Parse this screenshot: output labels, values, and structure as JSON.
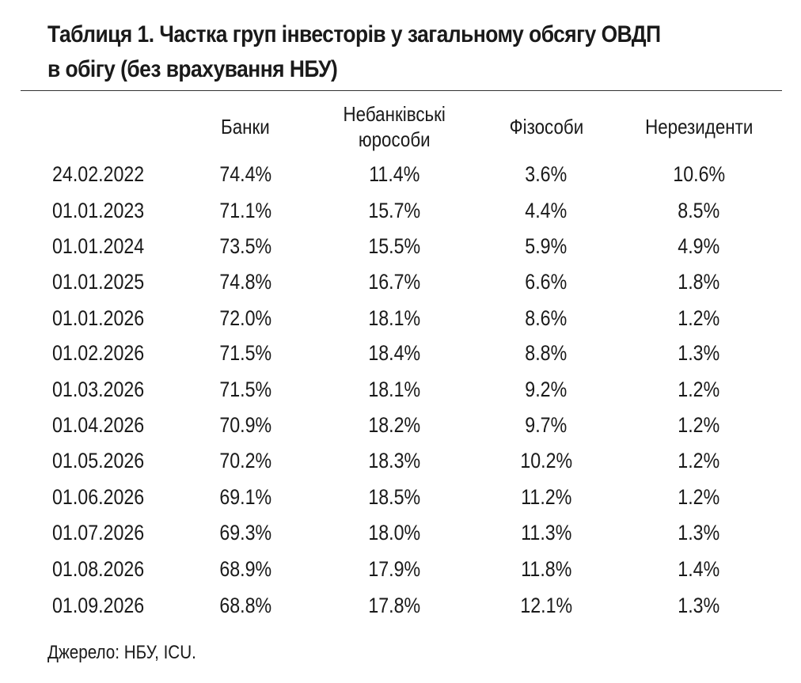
{
  "title_line1": "Таблиця 1. Частка груп інвесторів у загальному обсягу ОВДП",
  "title_line2": "в обігу (без врахування НБУ)",
  "headers": [
    "",
    "Банки",
    "Небанківські юрособи",
    "Фізособи",
    "Нерезиденти"
  ],
  "header_lines": {
    "nonbank_line1": "Небанківські",
    "nonbank_line2": "юрособи"
  },
  "rows": [
    [
      "24.02.2022",
      "74.4%",
      "11.4%",
      "3.6%",
      "10.6%"
    ],
    [
      "01.01.2023",
      "71.1%",
      "15.7%",
      "4.4%",
      "8.5%"
    ],
    [
      "01.01.2024",
      "73.5%",
      "15.5%",
      "5.9%",
      "4.9%"
    ],
    [
      "01.01.2025",
      "74.8%",
      "16.7%",
      "6.6%",
      "1.8%"
    ],
    [
      "01.01.2026",
      "72.0%",
      "18.1%",
      "8.6%",
      "1.2%"
    ],
    [
      "01.02.2026",
      "71.5%",
      "18.4%",
      "8.8%",
      "1.3%"
    ],
    [
      "01.03.2026",
      "71.5%",
      "18.1%",
      "9.2%",
      "1.2%"
    ],
    [
      "01.04.2026",
      "70.9%",
      "18.2%",
      "9.7%",
      "1.2%"
    ],
    [
      "01.05.2026",
      "70.2%",
      "18.3%",
      "10.2%",
      "1.2%"
    ],
    [
      "01.06.2026",
      "69.1%",
      "18.5%",
      "11.2%",
      "1.2%"
    ],
    [
      "01.07.2026",
      "69.3%",
      "18.0%",
      "11.3%",
      "1.3%"
    ],
    [
      "01.08.2026",
      "68.9%",
      "17.9%",
      "11.8%",
      "1.4%"
    ],
    [
      "01.09.2026",
      "68.8%",
      "17.8%",
      "12.1%",
      "1.3%"
    ]
  ],
  "source": "Джерело: НБУ, ICU."
}
